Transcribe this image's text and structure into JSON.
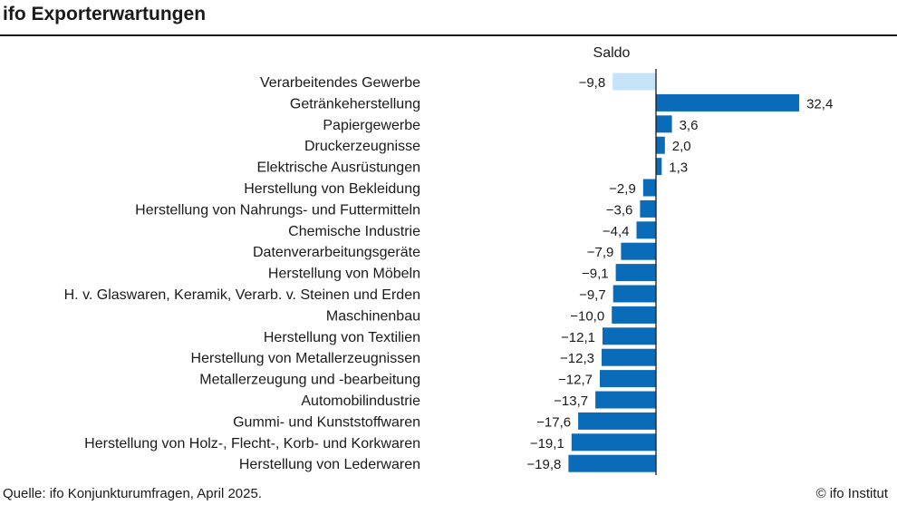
{
  "title": "ifo Exporterwartungen",
  "column_header": "Saldo",
  "source": "Quelle: ifo Konjunkturumfragen, April 2025.",
  "copyright": "© ifo Institut",
  "colors": {
    "highlight": "#c5e3f6",
    "bar": "#0a6cb8",
    "axis": "#1a1a1a"
  },
  "chart_data": {
    "type": "bar",
    "orientation": "horizontal",
    "categories": [
      "Verarbeitendes Gewerbe",
      "Getränkeherstellung",
      "Papiergewerbe",
      "Druckerzeugnisse",
      "Elektrische Ausrüstungen",
      "Herstellung von Bekleidung",
      "Herstellung von Nahrungs- und Futtermitteln",
      "Chemische Industrie",
      "Datenverarbeitungsgeräte",
      "Herstellung von Möbeln",
      "H. v. Glaswaren, Keramik, Verarb. v. Steinen und Erden",
      "Maschinenbau",
      "Herstellung von Textilien",
      "Herstellung von Metallerzeugnissen",
      "Metallerzeugung und -bearbeitung",
      "Automobilindustrie",
      "Gummi- und Kunststoffwaren",
      "Herstellung von Holz-, Flecht-, Korb- und Korkwaren",
      "Herstellung von Lederwaren"
    ],
    "values": [
      -9.8,
      32.4,
      3.6,
      2.0,
      1.3,
      -2.9,
      -3.6,
      -4.4,
      -7.9,
      -9.1,
      -9.7,
      -10.0,
      -12.1,
      -12.3,
      -12.7,
      -13.7,
      -17.6,
      -19.1,
      -19.8
    ],
    "value_labels": [
      "−9,8",
      "32,4",
      "3,6",
      "2,0",
      "1,3",
      "−2,9",
      "−3,6",
      "−4,4",
      "−7,9",
      "−9,1",
      "−9,7",
      "−10,0",
      "−12,1",
      "−12,3",
      "−12,7",
      "−13,7",
      "−17,6",
      "−19,1",
      "−19,8"
    ],
    "highlighted_category": "Verarbeitendes Gewerbe",
    "xlabel": "",
    "ylabel": "",
    "grid": false,
    "legend": "none"
  }
}
